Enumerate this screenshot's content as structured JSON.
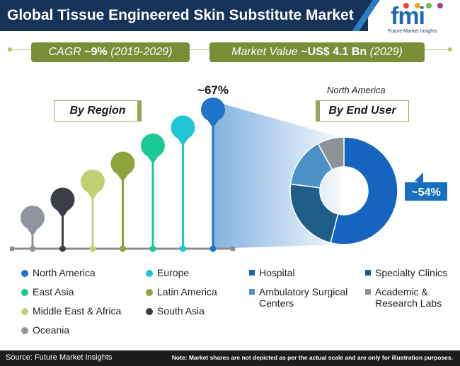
{
  "header": {
    "title": "Global Tissue Engineered Skin Substitute Market",
    "logo_text": "fmi",
    "logo_subtitle": "Future Market Insights"
  },
  "stats": {
    "cagr_label": "CAGR",
    "cagr_value": "~9%",
    "cagr_period": "(2019-2029)",
    "market_label": "Market Value",
    "market_value": "~US$ 4.1 Bn",
    "market_year": "(2029)"
  },
  "region_section": {
    "title": "By Region"
  },
  "end_user_section": {
    "title": "By End User",
    "highlight_region": "North America"
  },
  "colors": {
    "header_bg": "#16335a",
    "pill_bg": "#7a8e38",
    "north_america": "#1f73c8",
    "europe": "#1ec6d6",
    "east_asia": "#1bc995",
    "latin_america": "#8ea43a",
    "middle_east_africa": "#c2d074",
    "south_asia": "#3b3f45",
    "oceania": "#8f959b",
    "hospital": "#1565c0",
    "specialty_clinics": "#1f5e86",
    "ambulatory": "#4b91c6",
    "academic": "#8c9296"
  },
  "chart_data": [
    {
      "type": "lollipop",
      "title": "By Region",
      "categories": [
        "Oceania",
        "South Asia",
        "Middle East & Africa",
        "Latin America",
        "East Asia",
        "Europe",
        "North America"
      ],
      "rank": [
        1,
        2,
        3,
        4,
        5,
        6,
        7
      ],
      "annotations": [
        {
          "category": "North America",
          "label": "~67%"
        }
      ],
      "legend": [
        "North America",
        "Europe",
        "East Asia",
        "Latin America",
        "Middle East & Africa",
        "South Asia",
        "Oceania"
      ]
    },
    {
      "type": "pie",
      "variant": "donut",
      "title": "By End User",
      "subtitle": "North America",
      "categories": [
        "Hospital",
        "Specialty Clinics",
        "Ambulatory Surgical Centers",
        "Academic & Research Labs"
      ],
      "values": [
        54,
        23,
        15,
        8
      ],
      "annotations": [
        {
          "category": "Hospital",
          "label": "~54%"
        }
      ],
      "legend_position": "bottom"
    }
  ],
  "legend_region": [
    {
      "label": "North America",
      "color_key": "north_america"
    },
    {
      "label": "Europe",
      "color_key": "europe"
    },
    {
      "label": "East Asia",
      "color_key": "east_asia"
    },
    {
      "label": "Latin America",
      "color_key": "latin_america"
    },
    {
      "label": "Middle East & Africa",
      "color_key": "middle_east_africa"
    },
    {
      "label": "South Asia",
      "color_key": "south_asia"
    },
    {
      "label": "Oceania",
      "color_key": "oceania"
    }
  ],
  "legend_end_user": [
    {
      "label": "Hospital",
      "color_key": "hospital"
    },
    {
      "label": "Specialty Clinics",
      "color_key": "specialty_clinics"
    },
    {
      "label": "Ambulatory Surgical Centers",
      "color_key": "ambulatory"
    },
    {
      "label": "Academic & Research Labs",
      "color_key": "academic"
    }
  ],
  "footer": {
    "source": "Source: Future Market Insights",
    "note": "Note: Market shares are not depicted as per the actual scale and are only for illustration purposes."
  }
}
